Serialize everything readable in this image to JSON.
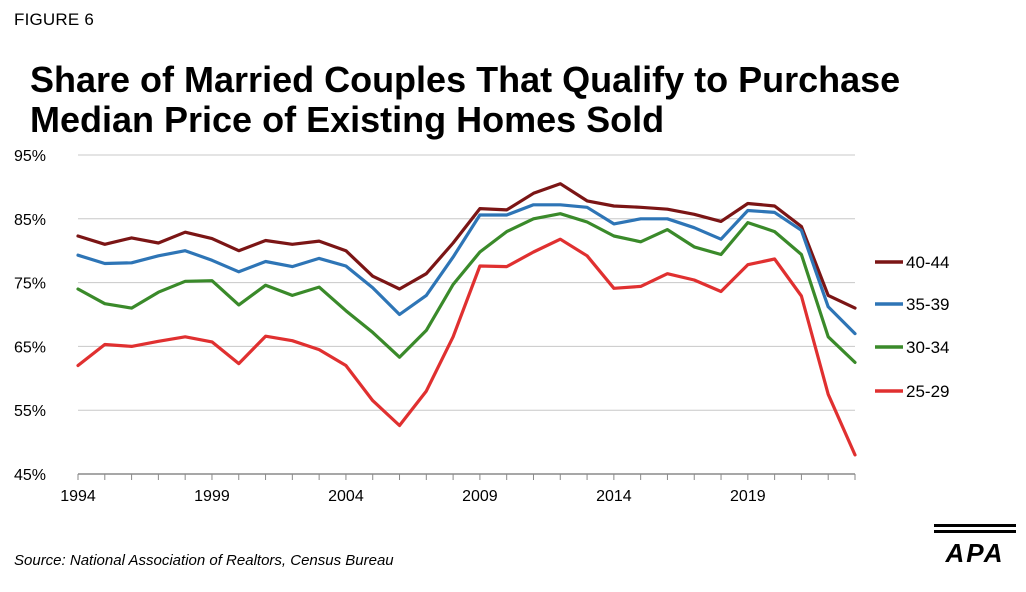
{
  "figure_label": "FIGURE 6",
  "title_lines": [
    "Share of Married Couples That Qualify to Purchase",
    "Median Price of Existing Homes Sold"
  ],
  "source": "Source: National Association of Realtors, Census Bureau",
  "logo_text": "APA",
  "chart_data": {
    "type": "line",
    "title": "Share of Married Couples That Qualify to Purchase Median Price of Existing Homes Sold",
    "xlabel": "",
    "ylabel": "",
    "x": [
      1994,
      1995,
      1996,
      1997,
      1998,
      1999,
      2000,
      2001,
      2002,
      2003,
      2004,
      2005,
      2006,
      2007,
      2008,
      2009,
      2010,
      2011,
      2012,
      2013,
      2014,
      2015,
      2016,
      2017,
      2018,
      2019,
      2020,
      2021,
      2022,
      2023
    ],
    "xticks": [
      1994,
      1999,
      2004,
      2009,
      2014,
      2019
    ],
    "xlim": [
      1994,
      2023
    ],
    "ylim": [
      45,
      95
    ],
    "yticks": [
      45,
      55,
      65,
      75,
      85,
      95
    ],
    "ytick_labels": [
      "45%",
      "55%",
      "65%",
      "75%",
      "85%",
      "95%"
    ],
    "grid": true,
    "legend_position": "right",
    "series": [
      {
        "name": "40-44",
        "color": "#7b1515",
        "values": [
          82.3,
          81.0,
          82.0,
          81.2,
          82.9,
          81.9,
          80.0,
          81.6,
          81.0,
          81.5,
          80.0,
          76.0,
          74.0,
          76.4,
          81.2,
          86.6,
          86.4,
          89.0,
          90.5,
          87.8,
          87.0,
          86.8,
          86.5,
          85.7,
          84.6,
          87.4,
          87.0,
          83.8,
          73.0,
          71.0
        ]
      },
      {
        "name": "35-39",
        "color": "#2e75b6",
        "values": [
          79.3,
          78.0,
          78.1,
          79.2,
          80.0,
          78.5,
          76.7,
          78.3,
          77.5,
          78.8,
          77.6,
          74.2,
          70.0,
          73.0,
          79.0,
          85.6,
          85.6,
          87.2,
          87.2,
          86.8,
          84.2,
          85.0,
          85.0,
          83.6,
          81.8,
          86.3,
          86.0,
          83.2,
          71.2,
          67.0
        ]
      },
      {
        "name": "30-34",
        "color": "#3a8a2a",
        "values": [
          74.0,
          71.7,
          71.0,
          73.5,
          75.2,
          75.3,
          71.5,
          74.6,
          73.0,
          74.3,
          70.6,
          67.2,
          63.3,
          67.5,
          74.7,
          79.8,
          83.0,
          85.0,
          85.8,
          84.5,
          82.3,
          81.4,
          83.3,
          80.6,
          79.4,
          84.4,
          83.0,
          79.4,
          66.5,
          62.5
        ]
      },
      {
        "name": "25-29",
        "color": "#e03030",
        "values": [
          62.0,
          65.3,
          65.0,
          65.8,
          66.5,
          65.7,
          62.3,
          66.6,
          65.9,
          64.5,
          62.0,
          56.5,
          52.6,
          58.0,
          66.5,
          77.6,
          77.5,
          79.8,
          81.8,
          79.2,
          74.1,
          74.4,
          76.4,
          75.4,
          73.6,
          77.8,
          78.7,
          72.9,
          57.5,
          48.0
        ]
      }
    ]
  }
}
